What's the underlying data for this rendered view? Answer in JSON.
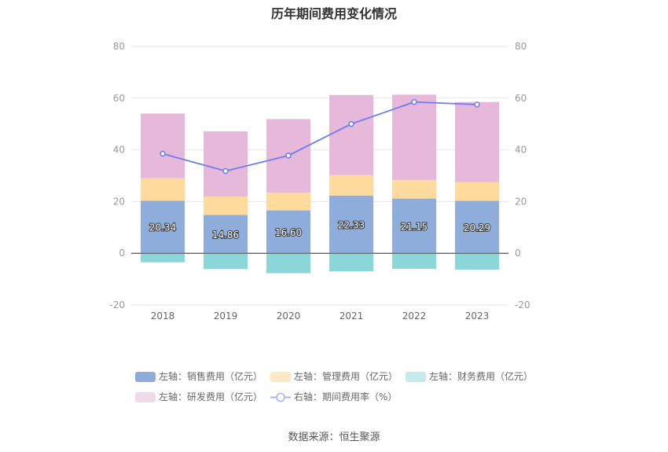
{
  "chart_data": {
    "type": "bar",
    "title": "历年期间费用变化情况",
    "categories": [
      "2018",
      "2019",
      "2020",
      "2021",
      "2022",
      "2023"
    ],
    "left_axis": {
      "ylim": [
        -20,
        80
      ],
      "ticks": [
        "-20",
        "0",
        "20",
        "40",
        "60",
        "80"
      ]
    },
    "right_axis": {
      "ylim": [
        -20,
        80
      ],
      "ticks": [
        "-20",
        "0",
        "20",
        "40",
        "60",
        "80"
      ]
    },
    "series": [
      {
        "name": "左轴：销售费用（亿元）",
        "kind": "stacked-bar",
        "color": "#8eaddb",
        "values": [
          20.34,
          14.86,
          16.6,
          22.33,
          21.15,
          20.29
        ],
        "labels": [
          "20.34",
          "14.86",
          "16.60",
          "22.33",
          "21.15",
          "20.29"
        ]
      },
      {
        "name": "左轴：管理费用（亿元）",
        "kind": "stacked-bar",
        "color": "#fedb9d",
        "values": [
          8.7,
          7.1,
          6.8,
          7.9,
          7.2,
          7.2
        ]
      },
      {
        "name": "左轴：财务费用（亿元）",
        "kind": "stacked-bar",
        "color": "#8ad6d8",
        "values": [
          -3.5,
          -6.1,
          -7.7,
          -7.0,
          -6.0,
          -6.3
        ]
      },
      {
        "name": "左轴：研发费用（亿元）",
        "kind": "stacked-bar",
        "color": "#e6b8d9",
        "values": [
          25.0,
          25.2,
          28.5,
          31.0,
          33.0,
          31.0
        ]
      },
      {
        "name": "右轴：期间费用率（%）",
        "kind": "line",
        "color": "#6f7cf0",
        "values": [
          38.5,
          31.8,
          37.8,
          50.0,
          58.5,
          57.5
        ]
      }
    ],
    "legend_position": "bottom",
    "grid": true
  },
  "legend": {
    "items": [
      {
        "label": "左轴：销售费用（亿元）",
        "color": "#8eaddb"
      },
      {
        "label": "左轴：管理费用（亿元）",
        "color": "#fedb9d"
      },
      {
        "label": "左轴：财务费用（亿元）",
        "color": "#c4ebec"
      },
      {
        "label": "左轴：研发费用（亿元）",
        "color": "#f2d9ea"
      },
      {
        "label": "右轴：期间费用率（%）",
        "color": "#6f7cf0"
      }
    ]
  },
  "source": "数据来源：恒生聚源"
}
